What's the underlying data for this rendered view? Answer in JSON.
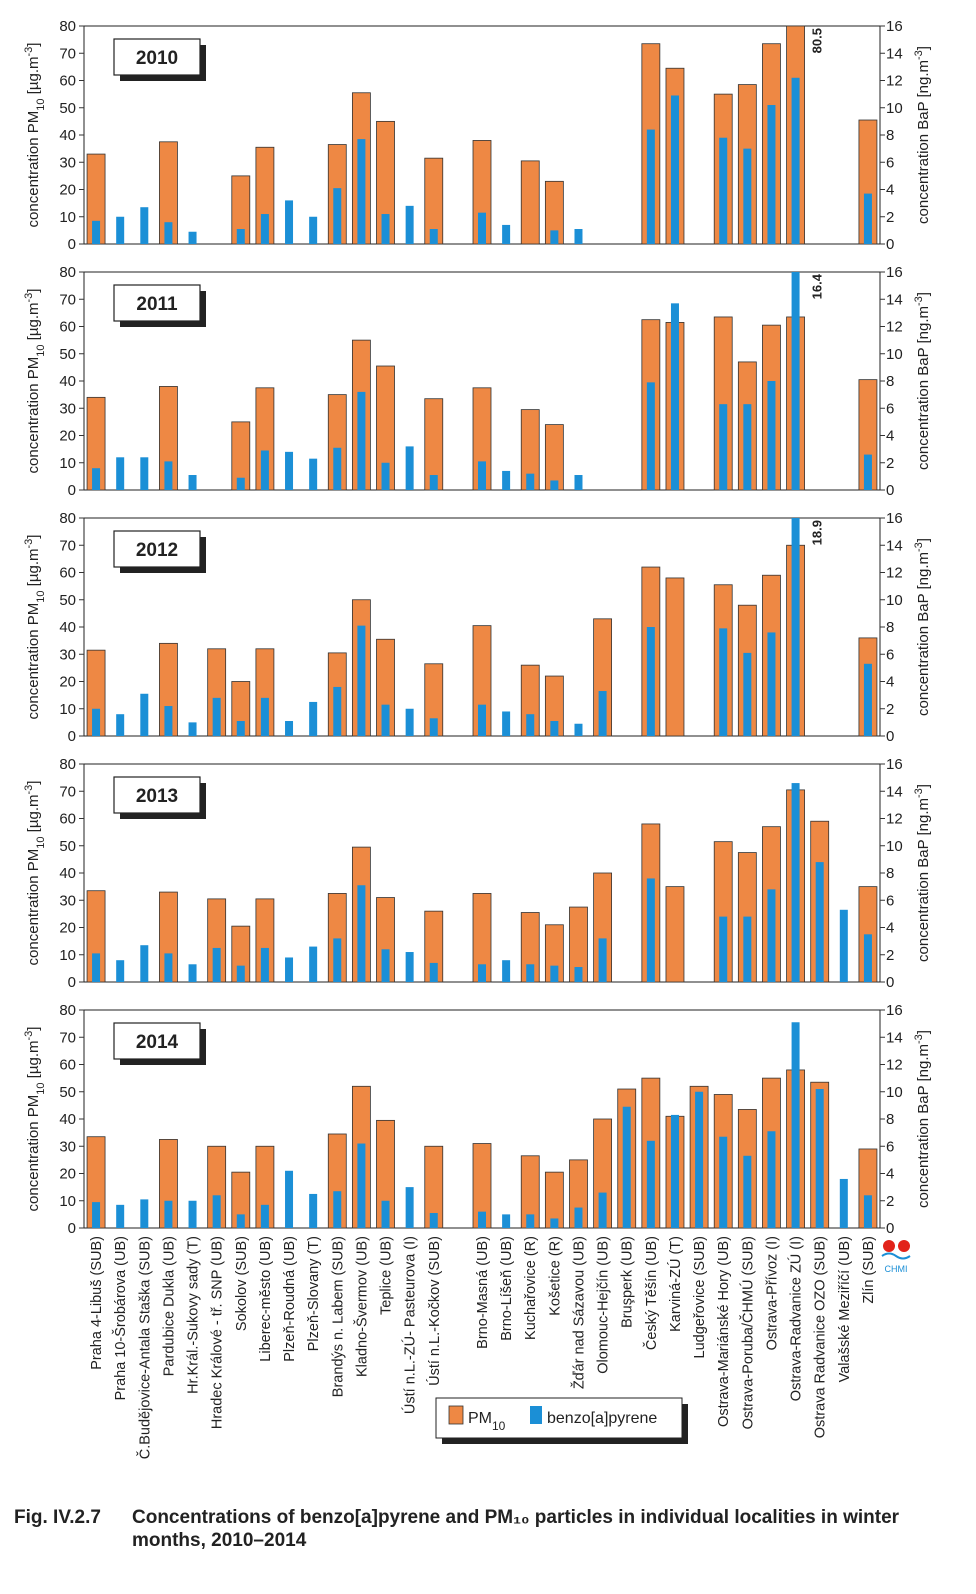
{
  "caption": {
    "label": "Fig. IV.2.7",
    "text": "Concentrations of benzo[a]pyrene and PM₁₀ particles in individual localities in winter months, 2010–2014"
  },
  "logo_text": "CHMI",
  "colors": {
    "pm10": "#EE8844",
    "bap": "#1B8FD6",
    "axis": "#333333",
    "frame": "#222222"
  },
  "chart_data": {
    "type": "bar",
    "categories": [
      "Praha 4-Libuš (SUB)",
      "Praha 10-Šrobárova (UB)",
      "Č.Budějovice-Antala Staška (SUB)",
      "Pardubice Dukla (UB)",
      "Hr.Král.-Sukovy sady (T)",
      "Hradec Králové - tř. SNP (UB)",
      "Sokolov (SUB)",
      "Liberec-město (UB)",
      "Plzeň-Roudná (UB)",
      "Plzeň-Slovany (T)",
      "Brandýs n. Labem (SUB)",
      "Kladno-Švermov (UB)",
      "Teplice (UB)",
      "Ústí n.L.-ZÚ- Pasteurova (I)",
      "Ústí n.L.-Kočkov (SUB)",
      "",
      "Brno-Masná (UB)",
      "Brno-Líšeň (UB)",
      "Kuchařovice (R)",
      "Košetice (R)",
      "Žďár nad Sázavou (UB)",
      "Olomouc-Hejčín (UB)",
      "Bruşperk (UB)",
      "Český Těšín (UB)",
      "Karviná-ZÚ (T)",
      "Ludgeřovice (SUB)",
      "Ostrava-Mariánské Hory (UB)",
      "Ostrava-Poruba/ČHMÚ (SUB)",
      "Ostrava-Přívoz (I)",
      "Ostrava-Radvanice ZÚ (I)",
      "Ostrava Radvanice OZO (SUB)",
      "Valašské Meziříčí (UB)",
      "Zlín (SUB)"
    ],
    "y_left_label": "concentration PM10 [µg.m-3]",
    "y_right_label": "concentration BaP [ng.m-3]",
    "y_left_range": [
      0,
      80
    ],
    "y_right_range": [
      0,
      16
    ],
    "y_left_ticks": [
      "0",
      "10",
      "20",
      "30",
      "40",
      "50",
      "60",
      "70",
      "80"
    ],
    "y_right_ticks": [
      "0",
      "2",
      "4",
      "6",
      "8",
      "10",
      "12",
      "14",
      "16"
    ],
    "legend": {
      "pm10": "PM10",
      "bap": "benzo[a]pyrene"
    },
    "series_names": [
      "PM10",
      "benzo[a]pyrene"
    ],
    "panels": [
      {
        "year": "2010",
        "pm10": [
          33,
          null,
          null,
          37.5,
          null,
          null,
          25,
          35.5,
          null,
          null,
          36.5,
          55.5,
          45,
          null,
          31.5,
          null,
          38,
          null,
          30.5,
          23,
          null,
          null,
          null,
          73.5,
          64.5,
          null,
          55,
          58.5,
          73.5,
          80.5,
          null,
          null,
          45.5
        ],
        "bap": [
          1.7,
          2.0,
          2.7,
          1.6,
          0.9,
          null,
          1.1,
          2.2,
          3.2,
          2.0,
          4.1,
          7.7,
          2.2,
          2.8,
          1.1,
          null,
          2.3,
          1.4,
          null,
          1.0,
          1.1,
          null,
          null,
          8.4,
          10.9,
          null,
          7.8,
          7.0,
          10.2,
          12.2,
          null,
          null,
          3.7
        ],
        "overflow_label": "80.5"
      },
      {
        "year": "2011",
        "pm10": [
          34,
          null,
          null,
          38,
          null,
          null,
          25,
          37.5,
          null,
          null,
          35,
          55,
          45.5,
          null,
          33.5,
          null,
          37.5,
          null,
          29.5,
          24,
          null,
          null,
          null,
          62.5,
          61.5,
          null,
          63.5,
          47,
          60.5,
          63.5,
          null,
          null,
          40.5
        ],
        "bap": [
          1.6,
          2.4,
          2.4,
          2.1,
          1.1,
          null,
          0.9,
          2.9,
          2.8,
          2.3,
          3.1,
          7.2,
          2.0,
          3.2,
          1.1,
          null,
          2.1,
          1.4,
          1.2,
          0.7,
          1.1,
          null,
          null,
          7.9,
          13.7,
          null,
          6.3,
          6.3,
          8.0,
          16.4,
          null,
          null,
          2.6
        ],
        "overflow_label": "16.4"
      },
      {
        "year": "2012",
        "pm10": [
          31.5,
          null,
          null,
          34,
          null,
          32,
          20,
          32,
          null,
          null,
          30.5,
          50,
          35.5,
          null,
          26.5,
          null,
          40.5,
          null,
          26,
          22,
          null,
          43,
          null,
          62,
          58,
          null,
          55.5,
          48,
          59,
          70,
          null,
          null,
          36
        ],
        "bap": [
          2.0,
          1.6,
          3.1,
          2.2,
          1.0,
          2.8,
          1.1,
          2.8,
          1.1,
          2.5,
          3.6,
          8.1,
          2.3,
          2.0,
          1.3,
          null,
          2.3,
          1.8,
          1.6,
          1.1,
          0.9,
          3.3,
          null,
          8.0,
          null,
          null,
          7.9,
          6.1,
          7.6,
          18.9,
          null,
          null,
          5.3
        ],
        "overflow_label": "18.9"
      },
      {
        "year": "2013",
        "pm10": [
          33.5,
          null,
          null,
          33,
          null,
          30.5,
          20.5,
          30.5,
          null,
          null,
          32.5,
          49.5,
          31,
          null,
          26,
          null,
          32.5,
          null,
          25.5,
          21,
          27.5,
          40,
          null,
          58,
          35,
          null,
          51.5,
          47.5,
          57,
          70.5,
          59,
          null,
          35
        ],
        "bap": [
          2.1,
          1.6,
          2.7,
          2.1,
          1.3,
          2.5,
          1.2,
          2.5,
          1.8,
          2.6,
          3.2,
          7.1,
          2.4,
          2.2,
          1.4,
          null,
          1.3,
          1.6,
          1.3,
          1.2,
          1.1,
          3.2,
          null,
          7.6,
          null,
          null,
          4.8,
          4.8,
          6.8,
          14.6,
          8.8,
          5.3,
          3.5
        ],
        "overflow_label": ""
      },
      {
        "year": "2014",
        "pm10": [
          33.5,
          null,
          null,
          32.5,
          null,
          30,
          20.5,
          30,
          null,
          null,
          34.5,
          52,
          39.5,
          null,
          30,
          null,
          31,
          null,
          26.5,
          20.5,
          25,
          40,
          51,
          55,
          41,
          52,
          49,
          43.5,
          55,
          58,
          53.5,
          null,
          29
        ],
        "bap": [
          1.9,
          1.7,
          2.1,
          2.0,
          2.0,
          2.4,
          1.0,
          1.7,
          4.2,
          2.5,
          2.7,
          6.2,
          2.0,
          3.0,
          1.1,
          null,
          1.2,
          1.0,
          1.0,
          0.7,
          1.5,
          2.6,
          8.9,
          6.4,
          8.3,
          10.0,
          6.7,
          5.3,
          7.1,
          15.1,
          10.2,
          3.6,
          2.4
        ],
        "overflow_label": ""
      }
    ]
  }
}
